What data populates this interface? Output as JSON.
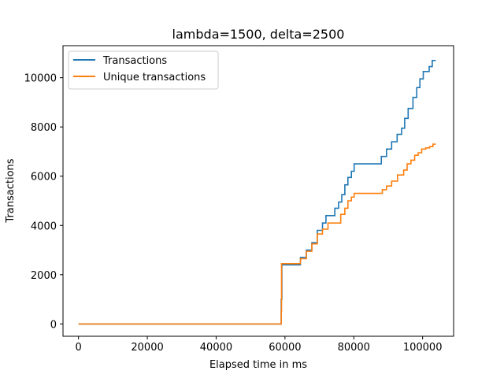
{
  "chart_data": {
    "type": "line",
    "title": "lambda=1500, delta=2500",
    "xlabel": "Elapsed time in ms",
    "ylabel": "Transactions",
    "xlim": [
      -4500,
      109000
    ],
    "ylim": [
      -500,
      11300
    ],
    "xticks": [
      0,
      20000,
      40000,
      60000,
      80000,
      100000
    ],
    "xtick_labels": [
      "0",
      "20000",
      "40000",
      "60000",
      "80000",
      "100000"
    ],
    "yticks": [
      0,
      2000,
      4000,
      6000,
      8000,
      10000
    ],
    "ytick_labels": [
      "0",
      "2000",
      "4000",
      "6000",
      "8000",
      "10000"
    ],
    "grid": false,
    "legend": "upper-left",
    "series": [
      {
        "name": "Transactions",
        "color": "#1f77b4",
        "x": [
          0,
          58900,
          58900,
          59100,
          59100,
          64500,
          64500,
          66200,
          66200,
          67800,
          67800,
          69400,
          69400,
          70900,
          70900,
          71900,
          71900,
          74500,
          74500,
          75600,
          75600,
          76500,
          76500,
          77400,
          77400,
          78300,
          78300,
          79300,
          79300,
          80100,
          80100,
          88000,
          88000,
          89500,
          89500,
          91000,
          91000,
          92600,
          92600,
          93900,
          93900,
          94800,
          94800,
          95800,
          95800,
          97200,
          97200,
          98300,
          98300,
          99200,
          99200,
          100200,
          100200,
          101900,
          101900,
          102800,
          102800,
          103800,
          103800
        ],
        "y": [
          0,
          0,
          1000,
          1000,
          2400,
          2400,
          2700,
          2700,
          3000,
          3000,
          3300,
          3300,
          3800,
          3800,
          4100,
          4100,
          4400,
          4400,
          4700,
          4700,
          4950,
          4950,
          5250,
          5250,
          5650,
          5650,
          5950,
          5950,
          6200,
          6200,
          6500,
          6500,
          6800,
          6800,
          7100,
          7100,
          7400,
          7400,
          7700,
          7700,
          7950,
          7950,
          8350,
          8350,
          8750,
          8750,
          9200,
          9200,
          9600,
          9600,
          9950,
          9950,
          10250,
          10250,
          10450,
          10450,
          10700,
          10700,
          10700
        ]
      },
      {
        "name": "Unique transactions",
        "color": "#ff7f0e",
        "x": [
          0,
          58900,
          58900,
          59000,
          59000,
          64500,
          64500,
          66200,
          66200,
          67800,
          67800,
          69400,
          69400,
          70900,
          70900,
          72500,
          72500,
          76200,
          76200,
          77400,
          77400,
          78300,
          78300,
          79300,
          79300,
          80100,
          80100,
          88300,
          88300,
          89500,
          89500,
          91000,
          91000,
          92700,
          92700,
          94500,
          94500,
          95500,
          95500,
          96600,
          96600,
          97700,
          97700,
          98700,
          98700,
          99700,
          99700,
          100900,
          100900,
          102000,
          102000,
          103000,
          103000,
          103800,
          103800
        ],
        "y": [
          0,
          0,
          500,
          500,
          2450,
          2450,
          2650,
          2650,
          2950,
          2950,
          3250,
          3250,
          3650,
          3650,
          3850,
          3850,
          4100,
          4100,
          4450,
          4450,
          4700,
          4700,
          5000,
          5000,
          5150,
          5150,
          5300,
          5300,
          5450,
          5450,
          5600,
          5600,
          5800,
          5800,
          6050,
          6050,
          6250,
          6250,
          6500,
          6500,
          6650,
          6650,
          6850,
          6850,
          6950,
          6950,
          7100,
          7100,
          7150,
          7150,
          7200,
          7200,
          7300,
          7300,
          7300
        ]
      }
    ]
  }
}
